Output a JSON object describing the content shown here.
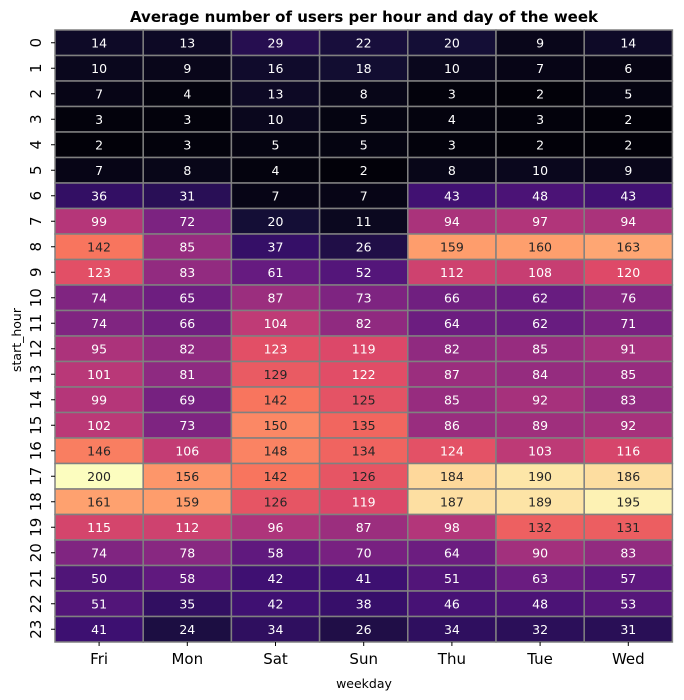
{
  "chart_data": {
    "type": "heatmap",
    "title": "Average number of users per hour and day of the week",
    "xlabel": "weekday",
    "ylabel": "start_hour",
    "colormap": "magma",
    "color_range": [
      0,
      200
    ],
    "columns": [
      "Fri",
      "Mon",
      "Sat",
      "Sun",
      "Thu",
      "Tue",
      "Wed"
    ],
    "rows": [
      "0",
      "1",
      "2",
      "3",
      "4",
      "5",
      "6",
      "7",
      "8",
      "9",
      "10",
      "11",
      "12",
      "13",
      "14",
      "15",
      "16",
      "17",
      "18",
      "19",
      "20",
      "21",
      "22",
      "23"
    ],
    "values": [
      [
        14,
        13,
        29,
        22,
        20,
        9,
        14
      ],
      [
        10,
        9,
        16,
        18,
        10,
        7,
        6
      ],
      [
        7,
        4,
        13,
        8,
        3,
        2,
        5
      ],
      [
        3,
        3,
        10,
        5,
        4,
        3,
        2
      ],
      [
        2,
        3,
        5,
        5,
        3,
        2,
        2
      ],
      [
        7,
        8,
        4,
        2,
        8,
        10,
        9
      ],
      [
        36,
        31,
        7,
        7,
        43,
        48,
        43
      ],
      [
        99,
        72,
        20,
        11,
        94,
        97,
        94
      ],
      [
        142,
        85,
        37,
        26,
        159,
        160,
        163
      ],
      [
        123,
        83,
        61,
        52,
        112,
        108,
        120
      ],
      [
        74,
        65,
        87,
        73,
        66,
        62,
        76
      ],
      [
        74,
        66,
        104,
        82,
        64,
        62,
        71
      ],
      [
        95,
        82,
        123,
        119,
        82,
        85,
        91
      ],
      [
        101,
        81,
        129,
        122,
        87,
        84,
        85
      ],
      [
        99,
        69,
        142,
        125,
        85,
        92,
        83
      ],
      [
        102,
        73,
        150,
        135,
        86,
        89,
        92
      ],
      [
        146,
        106,
        148,
        134,
        124,
        103,
        116
      ],
      [
        200,
        156,
        142,
        126,
        184,
        190,
        186
      ],
      [
        161,
        159,
        126,
        119,
        187,
        189,
        195
      ],
      [
        115,
        112,
        96,
        87,
        98,
        132,
        131
      ],
      [
        74,
        78,
        58,
        70,
        64,
        90,
        83
      ],
      [
        50,
        58,
        42,
        41,
        51,
        63,
        57
      ],
      [
        51,
        35,
        42,
        38,
        46,
        48,
        53
      ],
      [
        41,
        24,
        34,
        26,
        34,
        32,
        31
      ]
    ],
    "cell_border_color": "#808080",
    "legend": "none"
  }
}
